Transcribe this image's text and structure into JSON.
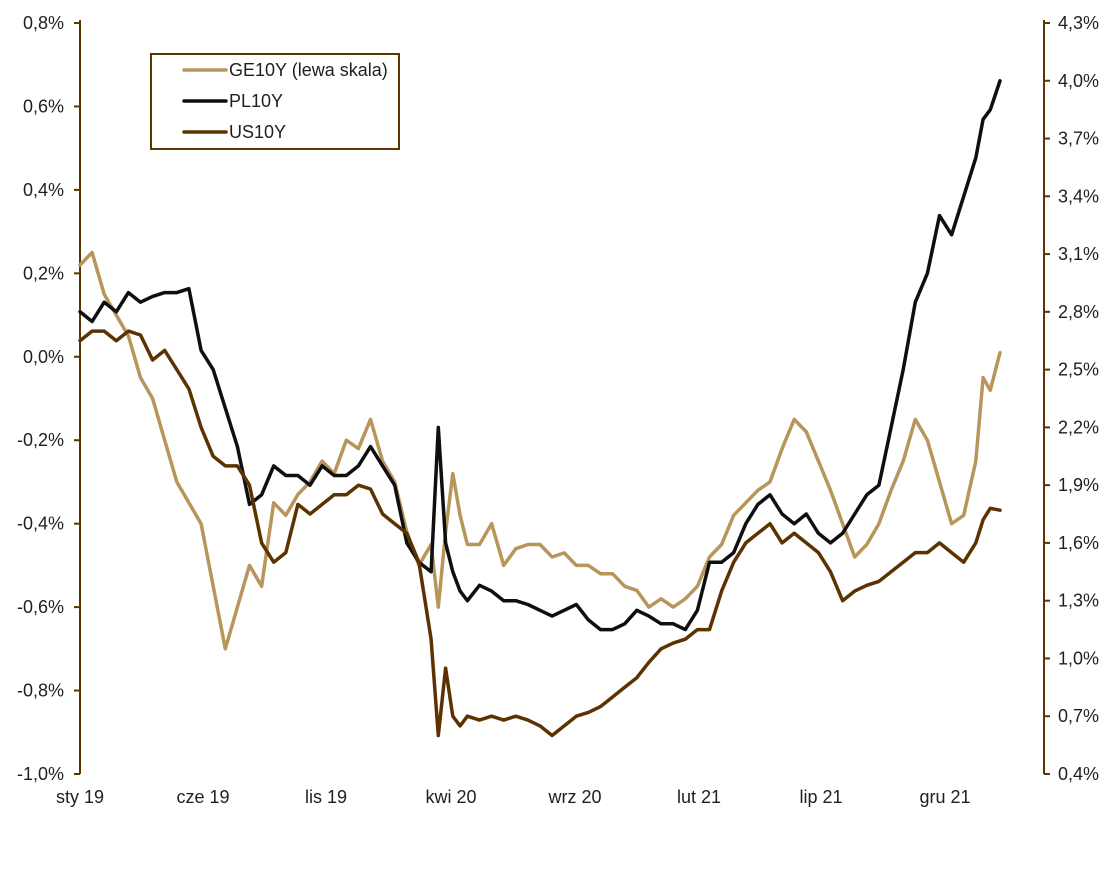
{
  "chart_data": {
    "type": "line",
    "title": "",
    "x_ticks": [
      "sty 19",
      "cze 19",
      "lis 19",
      "kwi 20",
      "wrz 20",
      "lut 21",
      "lip 21",
      "gru 21"
    ],
    "left_axis": {
      "range": [
        -1.0,
        0.8
      ],
      "ticks": [
        "-1,0%",
        "-0,8%",
        "-0,6%",
        "-0,4%",
        "-0,2%",
        "0,0%",
        "0,2%",
        "0,4%",
        "0,6%",
        "0,8%"
      ]
    },
    "right_axis": {
      "range": [
        0.4,
        4.3
      ],
      "ticks": [
        "0,4%",
        "0,7%",
        "1,0%",
        "1,3%",
        "1,6%",
        "1,9%",
        "2,2%",
        "2,5%",
        "2,8%",
        "3,1%",
        "3,4%",
        "3,7%",
        "4,0%",
        "4,3%"
      ]
    },
    "x_range": [
      0,
      38
    ],
    "legend_position": "top-left",
    "series": [
      {
        "name": "GE10Y (lewa skala)",
        "axis": "left",
        "color": "#b8955a",
        "x": [
          0,
          0.5,
          1,
          1.5,
          2,
          2.5,
          3,
          3.5,
          4,
          4.5,
          5,
          5.5,
          6,
          6.5,
          7,
          7.5,
          8,
          8.5,
          9,
          9.5,
          10,
          10.5,
          11,
          11.5,
          12,
          12.5,
          13,
          13.5,
          14,
          14.5,
          14.8,
          15.1,
          15.4,
          15.7,
          16,
          16.5,
          17,
          17.5,
          18,
          18.5,
          19,
          19.5,
          20,
          20.5,
          21,
          21.5,
          22,
          22.5,
          23,
          23.5,
          24,
          24.5,
          25,
          25.5,
          26,
          26.5,
          27,
          27.5,
          28,
          28.5,
          29,
          29.5,
          30,
          30.5,
          31,
          31.5,
          32,
          32.5,
          33,
          33.5,
          34,
          34.5,
          35,
          35.5,
          36,
          36.5,
          37,
          37.3,
          37.6,
          38
        ],
        "values": [
          0.22,
          0.25,
          0.15,
          0.1,
          0.05,
          -0.05,
          -0.1,
          -0.2,
          -0.3,
          -0.35,
          -0.4,
          -0.55,
          -0.7,
          -0.6,
          -0.5,
          -0.55,
          -0.35,
          -0.38,
          -0.33,
          -0.3,
          -0.25,
          -0.28,
          -0.2,
          -0.22,
          -0.15,
          -0.25,
          -0.3,
          -0.42,
          -0.5,
          -0.45,
          -0.6,
          -0.42,
          -0.28,
          -0.38,
          -0.45,
          -0.45,
          -0.4,
          -0.5,
          -0.46,
          -0.45,
          -0.45,
          -0.48,
          -0.47,
          -0.5,
          -0.5,
          -0.52,
          -0.52,
          -0.55,
          -0.56,
          -0.6,
          -0.58,
          -0.6,
          -0.58,
          -0.55,
          -0.48,
          -0.45,
          -0.38,
          -0.35,
          -0.32,
          -0.3,
          -0.22,
          -0.15,
          -0.18,
          -0.25,
          -0.32,
          -0.4,
          -0.48,
          -0.45,
          -0.4,
          -0.32,
          -0.25,
          -0.15,
          -0.2,
          -0.3,
          -0.4,
          -0.38,
          -0.25,
          -0.05,
          -0.08,
          0.01
        ]
      },
      {
        "name": "PL10Y",
        "axis": "right",
        "color": "#0f0f0f",
        "x": [
          0,
          0.5,
          1,
          1.5,
          2,
          2.5,
          3,
          3.5,
          4,
          4.5,
          5,
          5.5,
          6,
          6.5,
          7,
          7.5,
          8,
          8.5,
          9,
          9.5,
          10,
          10.5,
          11,
          11.5,
          12,
          12.5,
          13,
          13.5,
          14,
          14.5,
          14.8,
          15.1,
          15.4,
          15.7,
          16,
          16.5,
          17,
          17.5,
          18,
          18.5,
          19,
          19.5,
          20,
          20.5,
          21,
          21.5,
          22,
          22.5,
          23,
          23.5,
          24,
          24.5,
          25,
          25.5,
          26,
          26.5,
          27,
          27.5,
          28,
          28.5,
          29,
          29.5,
          30,
          30.5,
          31,
          31.5,
          32,
          32.5,
          33,
          33.5,
          34,
          34.5,
          35,
          35.5,
          36,
          36.5,
          37,
          37.3,
          37.6,
          38
        ],
        "values": [
          2.8,
          2.75,
          2.85,
          2.8,
          2.9,
          2.85,
          2.88,
          2.9,
          2.9,
          2.92,
          2.6,
          2.5,
          2.3,
          2.1,
          1.8,
          1.85,
          2.0,
          1.95,
          1.95,
          1.9,
          2.0,
          1.95,
          1.95,
          2.0,
          2.1,
          2.0,
          1.9,
          1.6,
          1.5,
          1.45,
          2.2,
          1.6,
          1.45,
          1.35,
          1.3,
          1.38,
          1.35,
          1.3,
          1.3,
          1.28,
          1.25,
          1.22,
          1.25,
          1.28,
          1.2,
          1.15,
          1.15,
          1.18,
          1.25,
          1.22,
          1.18,
          1.18,
          1.15,
          1.25,
          1.5,
          1.5,
          1.55,
          1.7,
          1.8,
          1.85,
          1.75,
          1.7,
          1.75,
          1.65,
          1.6,
          1.65,
          1.75,
          1.85,
          1.9,
          2.2,
          2.5,
          2.85,
          3.0,
          3.3,
          3.2,
          3.4,
          3.6,
          3.8,
          3.85,
          4.0
        ]
      },
      {
        "name": "US10Y",
        "axis": "right",
        "color": "#5c3300",
        "x": [
          0,
          0.5,
          1,
          1.5,
          2,
          2.5,
          3,
          3.5,
          4,
          4.5,
          5,
          5.5,
          6,
          6.5,
          7,
          7.5,
          8,
          8.5,
          9,
          9.5,
          10,
          10.5,
          11,
          11.5,
          12,
          12.5,
          13,
          13.5,
          14,
          14.5,
          14.8,
          15.1,
          15.4,
          15.7,
          16,
          16.5,
          17,
          17.5,
          18,
          18.5,
          19,
          19.5,
          20,
          20.5,
          21,
          21.5,
          22,
          22.5,
          23,
          23.5,
          24,
          24.5,
          25,
          25.5,
          26,
          26.5,
          27,
          27.5,
          28,
          28.5,
          29,
          29.5,
          30,
          30.5,
          31,
          31.5,
          32,
          32.5,
          33,
          33.5,
          34,
          34.5,
          35,
          35.5,
          36,
          36.5,
          37,
          37.3,
          37.6,
          38
        ],
        "values": [
          2.65,
          2.7,
          2.7,
          2.65,
          2.7,
          2.68,
          2.55,
          2.6,
          2.5,
          2.4,
          2.2,
          2.05,
          2.0,
          2.0,
          1.9,
          1.6,
          1.5,
          1.55,
          1.8,
          1.75,
          1.8,
          1.85,
          1.85,
          1.9,
          1.88,
          1.75,
          1.7,
          1.65,
          1.5,
          1.1,
          0.6,
          0.95,
          0.7,
          0.65,
          0.7,
          0.68,
          0.7,
          0.68,
          0.7,
          0.68,
          0.65,
          0.6,
          0.65,
          0.7,
          0.72,
          0.75,
          0.8,
          0.85,
          0.9,
          0.98,
          1.05,
          1.08,
          1.1,
          1.15,
          1.15,
          1.35,
          1.5,
          1.6,
          1.65,
          1.7,
          1.6,
          1.65,
          1.6,
          1.55,
          1.45,
          1.3,
          1.35,
          1.38,
          1.4,
          1.45,
          1.5,
          1.55,
          1.55,
          1.6,
          1.55,
          1.5,
          1.6,
          1.72,
          1.78,
          1.77
        ]
      }
    ]
  }
}
